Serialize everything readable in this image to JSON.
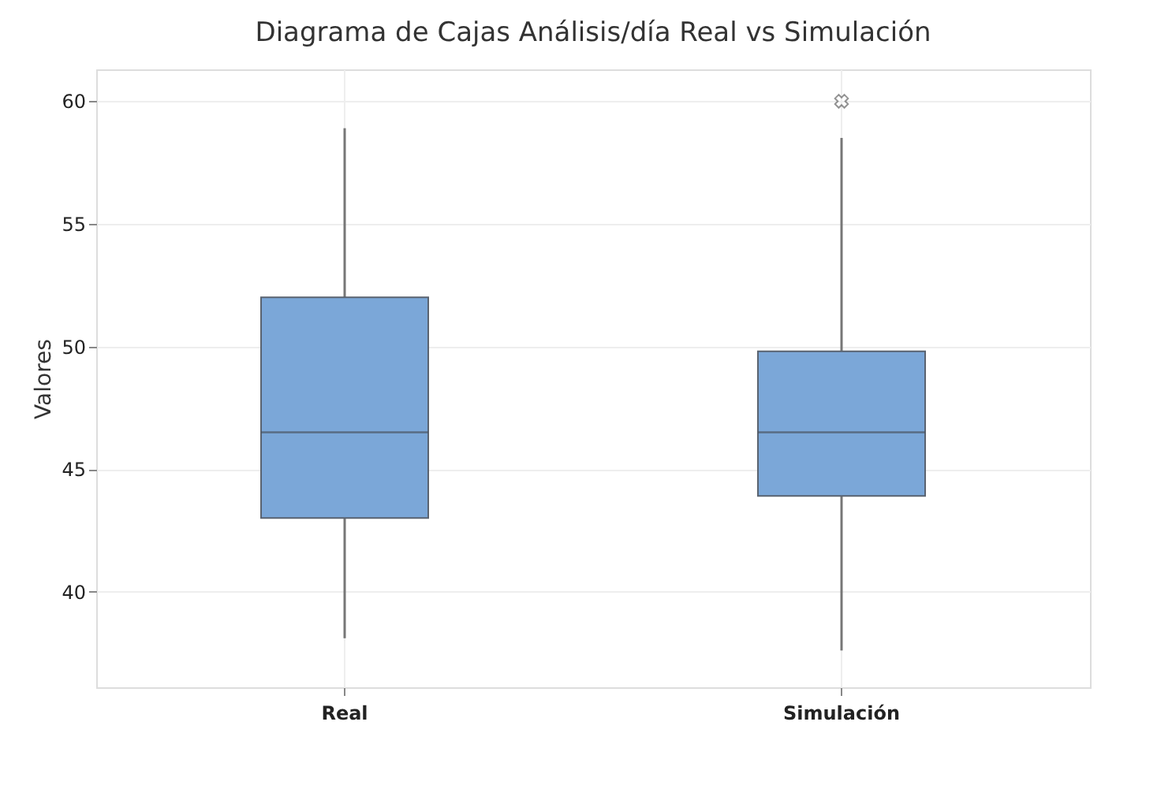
{
  "chart_data": {
    "type": "box",
    "title": "Diagrama de Cajas Análisis/día Real vs Simulación",
    "ylabel": "Valores",
    "categories": [
      "Real",
      "Simulación"
    ],
    "boxes": [
      {
        "low": 38.1,
        "q1": 43.0,
        "median": 46.5,
        "q3": 52.0,
        "high": 58.9
      },
      {
        "low": 37.6,
        "q1": 43.9,
        "median": 46.5,
        "q3": 49.8,
        "high": 58.5,
        "outliers": [
          60
        ]
      }
    ],
    "colors": [
      "#7ba7d8",
      "#7ba7d8"
    ],
    "ylim": [
      36.1,
      61.3
    ],
    "yticks": [
      40,
      45,
      50,
      55,
      60
    ],
    "grid": true
  }
}
